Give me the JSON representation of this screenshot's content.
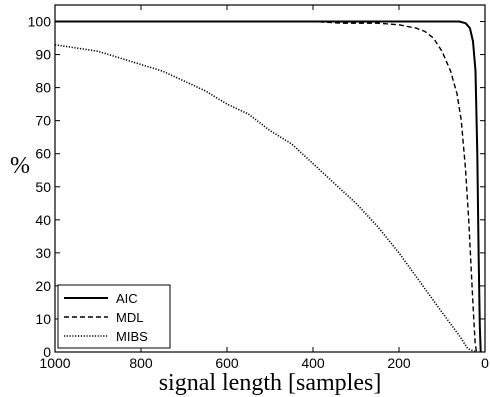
{
  "chart_data": {
    "type": "line",
    "xlabel": "signal length [samples]",
    "ylabel": "%",
    "xlim": [
      1000,
      0
    ],
    "ylim": [
      0,
      105
    ],
    "x_reversed": true,
    "grid": false,
    "legend_position": "bottom-left",
    "xticks": [
      1000,
      800,
      600,
      400,
      200,
      0
    ],
    "yticks": [
      0,
      10,
      20,
      30,
      40,
      50,
      60,
      70,
      80,
      90,
      100
    ],
    "series": [
      {
        "name": "AIC",
        "style": "solid",
        "x": [
          1000,
          900,
          800,
          700,
          600,
          500,
          400,
          300,
          200,
          100,
          60,
          45,
          35,
          28,
          22,
          18,
          15,
          12,
          10
        ],
        "y": [
          100,
          100,
          100,
          100,
          100,
          100,
          100,
          100,
          100,
          100,
          100,
          99.5,
          98,
          94,
          85,
          60,
          30,
          8,
          0
        ]
      },
      {
        "name": "MDL",
        "style": "dashed",
        "x": [
          1000,
          800,
          600,
          400,
          330,
          250,
          200,
          180,
          160,
          140,
          120,
          100,
          80,
          65,
          55,
          45,
          38,
          32,
          27,
          23,
          20
        ],
        "y": [
          100,
          100,
          100,
          100,
          99.5,
          99.5,
          99,
          98.5,
          98,
          97,
          95,
          91,
          85,
          78,
          70,
          55,
          40,
          25,
          12,
          3,
          0
        ]
      },
      {
        "name": "MIBS",
        "style": "dotted",
        "x": [
          1000,
          950,
          900,
          850,
          800,
          750,
          700,
          650,
          600,
          550,
          500,
          450,
          400,
          350,
          300,
          250,
          200,
          150,
          100,
          60,
          40,
          20
        ],
        "y": [
          93,
          92,
          91,
          89,
          87,
          85,
          82,
          79,
          75,
          72,
          67,
          63,
          57,
          51,
          45,
          38,
          30,
          21,
          12,
          5,
          1,
          0
        ]
      }
    ]
  }
}
